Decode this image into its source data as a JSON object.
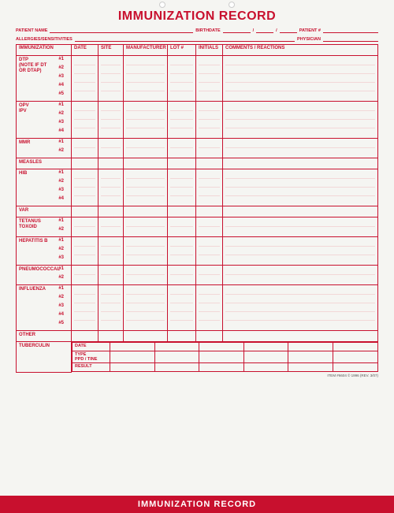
{
  "title": "IMMUNIZATION RECORD",
  "footer_band": "IMMUNIZATION RECORD",
  "footer_item": "ITEM #6604    © 1996 (REV. 3/07)",
  "colors": {
    "accent": "#c8102e",
    "faint_line": "#f2d7d7",
    "background": "#f5f5f2",
    "footer_text": "#ffffff"
  },
  "header_fields": {
    "patient_name": "PATIENT NAME",
    "birthdate": "BIRTHDATE",
    "patient_no": "PATIENT #",
    "allergies": "ALLERGIES/SENSITIVITIES",
    "physician": "PHYSICIAN",
    "date_sep": "/"
  },
  "columns": {
    "immunization": "IMMUNIZATION",
    "date": "DATE",
    "site": "SITE",
    "manufacturer": "MANUFACTURER",
    "lot": "LOT #",
    "initials": "INITIALS",
    "comments": "COMMENTS / REACTIONS"
  },
  "sections": [
    {
      "label": "DTP\n(NOTE IF DT OR DTAP)",
      "rows": [
        "#1",
        "#2",
        "#3",
        "#4",
        "#5"
      ]
    },
    {
      "label": "OPV\nIPV",
      "rows": [
        "#1",
        "#2",
        "#3",
        "#4"
      ]
    },
    {
      "label": "MMR",
      "rows": [
        "#1",
        "#2"
      ]
    },
    {
      "label": "MEASLES",
      "rows": [
        ""
      ]
    },
    {
      "label": "HIB",
      "rows": [
        "#1",
        "#2",
        "#3",
        "#4"
      ]
    },
    {
      "label": "VAR",
      "rows": [
        ""
      ]
    },
    {
      "label": "TETANUS TOXOID",
      "rows": [
        "#1",
        "#2"
      ]
    },
    {
      "label": "HEPATITIS B",
      "rows": [
        "#1",
        "#2",
        "#3"
      ]
    },
    {
      "label": "PNEUMOCOCCAL",
      "rows": [
        "#1",
        "#2"
      ]
    },
    {
      "label": "INFLUENZA",
      "rows": [
        "#1",
        "#2",
        "#3",
        "#4",
        "#5"
      ]
    },
    {
      "label": "OTHER",
      "rows": [
        ""
      ]
    }
  ],
  "tuberculin": {
    "label": "TUBERCULIN",
    "sub": {
      "date": "DATE",
      "type": "TYPE\nPPD / TINE",
      "result": "RESULT"
    },
    "cols": 6
  }
}
